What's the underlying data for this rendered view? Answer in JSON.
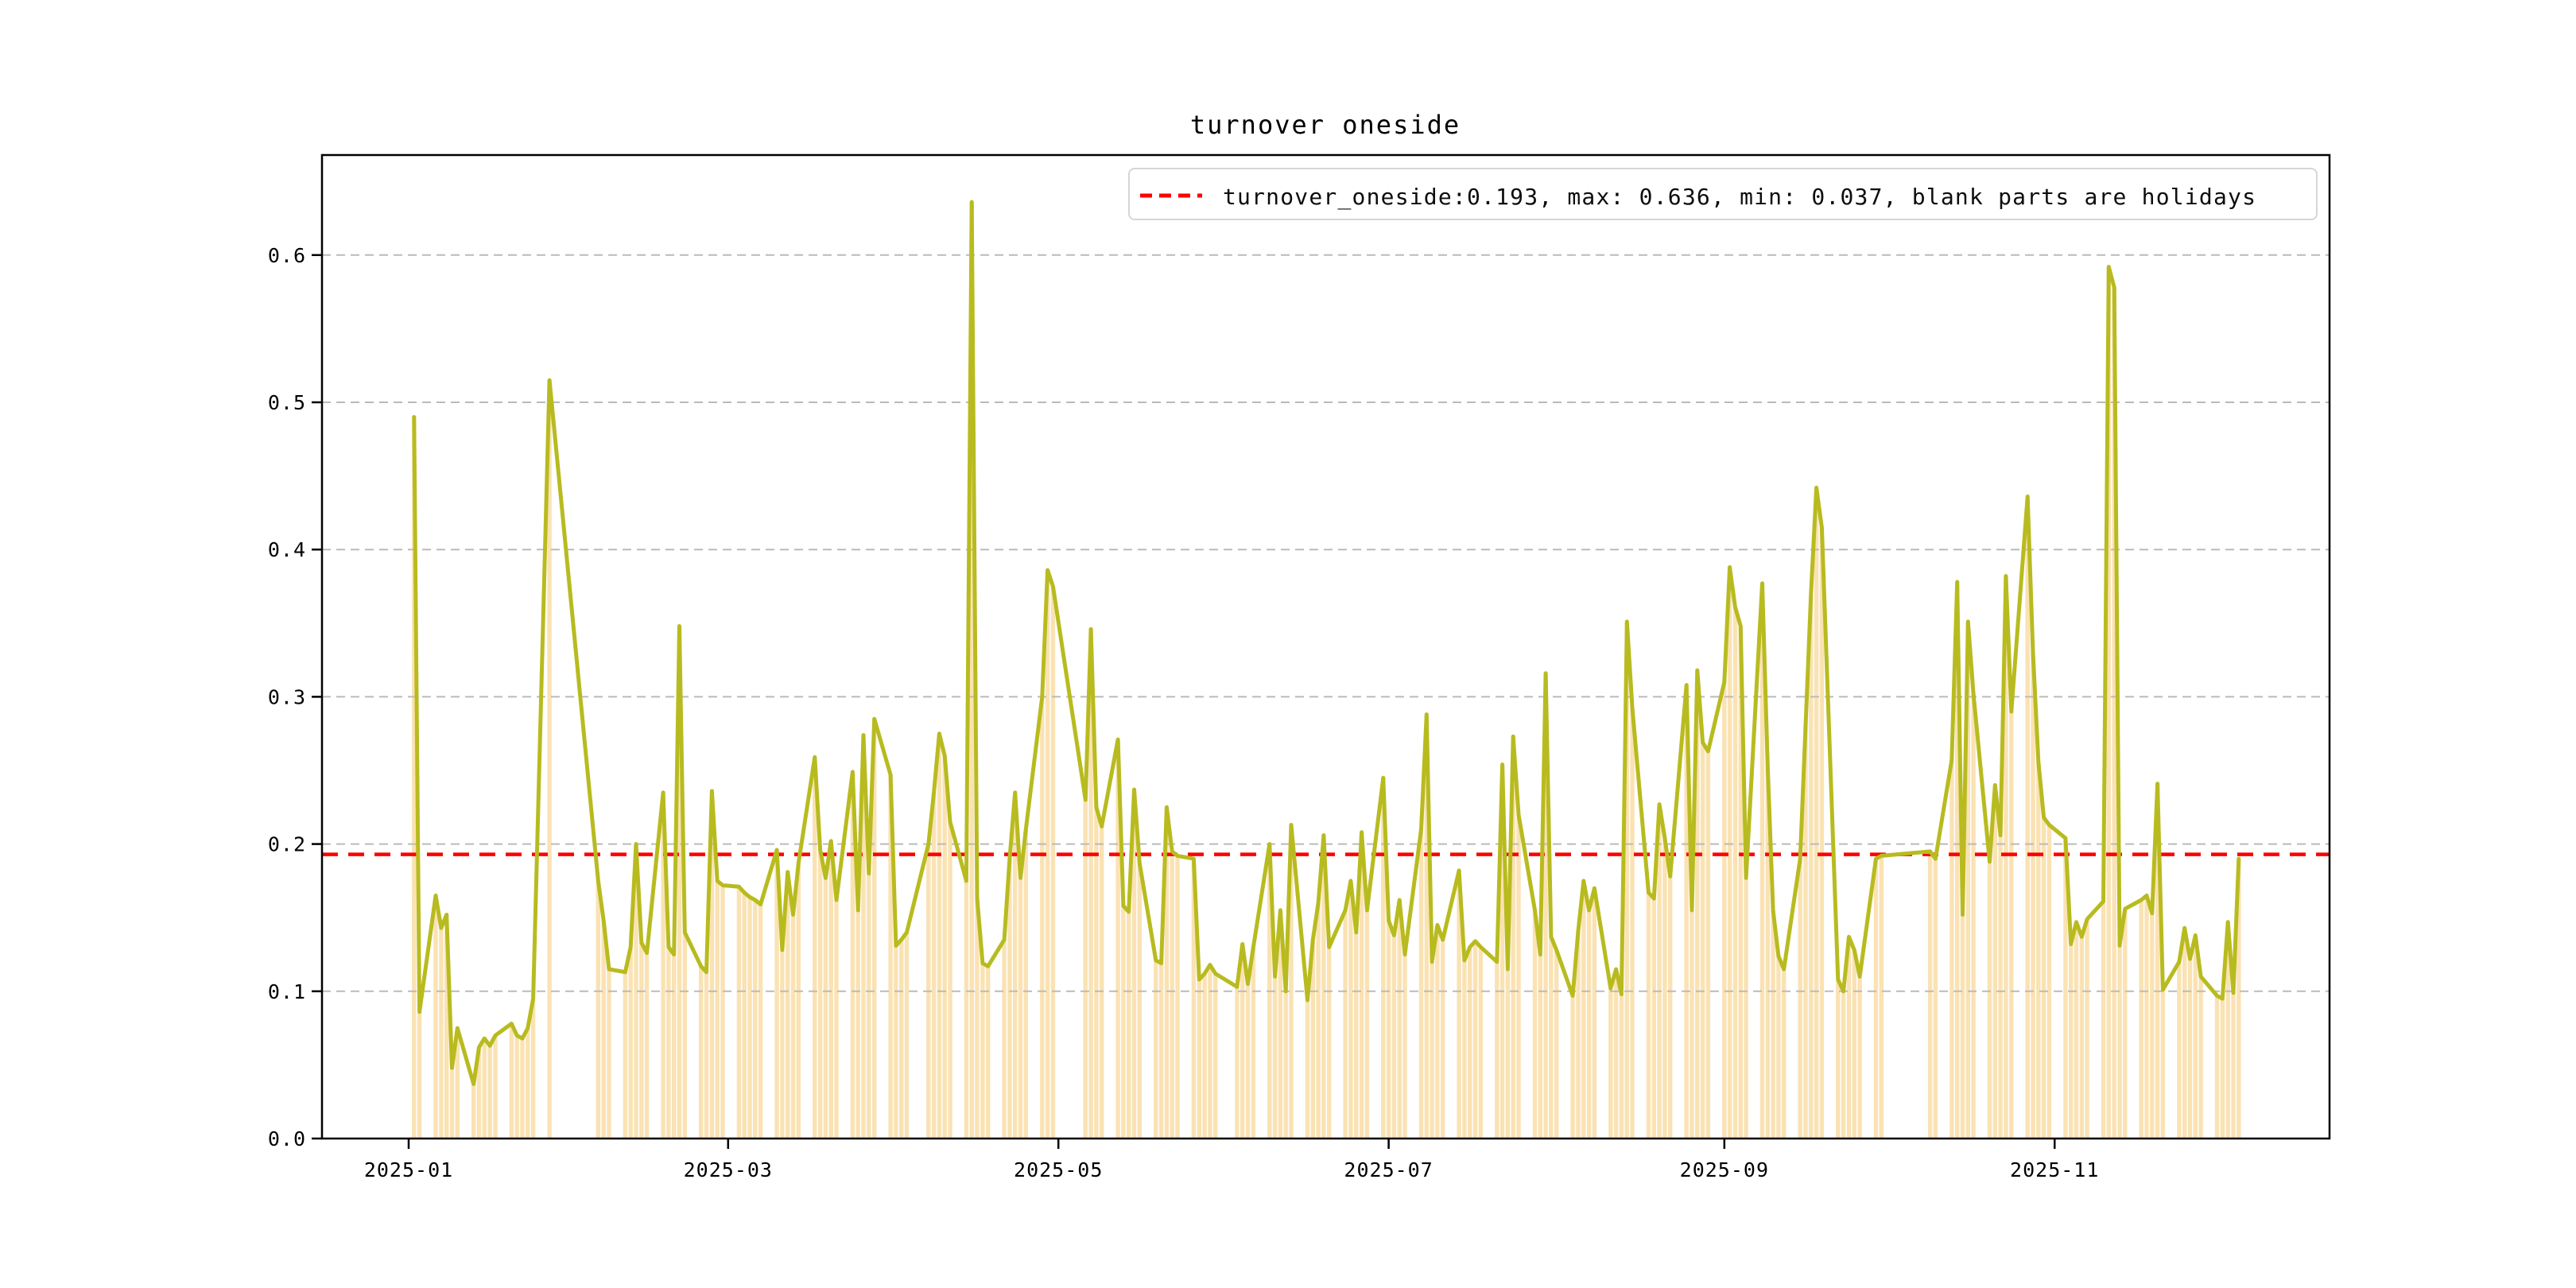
{
  "title": "turnover oneside",
  "legend": {
    "label": "turnover_oneside:0.193, max: 0.636, min: 0.037, blank parts are holidays",
    "sample_style": "red-dashed-line"
  },
  "colors": {
    "line": "#b8bb1f",
    "bar": "#fae2b3",
    "mean_line": "#ff0000",
    "grid": "#bababa",
    "spine": "#000000",
    "text": "#000000",
    "legend_border": "#d6d6d6",
    "background": "#ffffff"
  },
  "chart_data": {
    "type": "line",
    "title": "turnover oneside",
    "series_name": "turnover_oneside",
    "xlabel": "",
    "ylabel": "",
    "year": "2025",
    "stats": {
      "mean": 0.193,
      "max": 0.636,
      "min": 0.037
    },
    "mean_line_value": 0.193,
    "bars_meaning": "trading days (height = daily value); blank parts are holidays",
    "grid": "horizontal dashed",
    "legend_position": "upper right",
    "xticks": [
      "2025-01",
      "2025-03",
      "2025-05",
      "2025-07",
      "2025-09",
      "2025-11"
    ],
    "yticks": [
      0.0,
      0.1,
      0.2,
      0.3,
      0.4,
      0.5,
      0.6
    ],
    "ylim": [
      0,
      0.668
    ],
    "dates": [
      "01-02",
      "01-03",
      "01-06",
      "01-07",
      "01-08",
      "01-09",
      "01-10",
      "01-13",
      "01-14",
      "01-15",
      "01-16",
      "01-17",
      "01-20",
      "01-21",
      "01-22",
      "01-23",
      "01-24",
      "01-27",
      "02-05",
      "02-06",
      "02-07",
      "02-10",
      "02-11",
      "02-12",
      "02-13",
      "02-14",
      "02-17",
      "02-18",
      "02-19",
      "02-20",
      "02-21",
      "02-24",
      "02-25",
      "02-26",
      "02-27",
      "02-28",
      "03-03",
      "03-04",
      "03-05",
      "03-06",
      "03-07",
      "03-10",
      "03-11",
      "03-12",
      "03-13",
      "03-14",
      "03-17",
      "03-18",
      "03-19",
      "03-20",
      "03-21",
      "03-24",
      "03-25",
      "03-26",
      "03-27",
      "03-28",
      "03-31",
      "04-01",
      "04-02",
      "04-03",
      "04-07",
      "04-08",
      "04-09",
      "04-10",
      "04-11",
      "04-14",
      "04-15",
      "04-16",
      "04-17",
      "04-18",
      "04-21",
      "04-22",
      "04-23",
      "04-24",
      "04-25",
      "04-28",
      "04-29",
      "04-30",
      "05-06",
      "05-07",
      "05-08",
      "05-09",
      "05-12",
      "05-13",
      "05-14",
      "05-15",
      "05-16",
      "05-19",
      "05-20",
      "05-21",
      "05-22",
      "05-23",
      "05-26",
      "05-27",
      "05-28",
      "05-29",
      "05-30",
      "06-03",
      "06-04",
      "06-05",
      "06-06",
      "06-09",
      "06-10",
      "06-11",
      "06-12",
      "06-13",
      "06-16",
      "06-17",
      "06-18",
      "06-19",
      "06-20",
      "06-23",
      "06-24",
      "06-25",
      "06-26",
      "06-27",
      "06-30",
      "07-01",
      "07-02",
      "07-03",
      "07-04",
      "07-07",
      "07-08",
      "07-09",
      "07-10",
      "07-11",
      "07-14",
      "07-15",
      "07-16",
      "07-17",
      "07-18",
      "07-21",
      "07-22",
      "07-23",
      "07-24",
      "07-25",
      "07-28",
      "07-29",
      "07-30",
      "07-31",
      "08-01",
      "08-04",
      "08-05",
      "08-06",
      "08-07",
      "08-08",
      "08-11",
      "08-12",
      "08-13",
      "08-14",
      "08-15",
      "08-18",
      "08-19",
      "08-20",
      "08-21",
      "08-22",
      "08-25",
      "08-26",
      "08-27",
      "08-28",
      "08-29",
      "09-01",
      "09-02",
      "09-03",
      "09-04",
      "09-05",
      "09-08",
      "09-09",
      "09-10",
      "09-11",
      "09-12",
      "09-15",
      "09-16",
      "09-17",
      "09-18",
      "09-19",
      "09-22",
      "09-23",
      "09-24",
      "09-25",
      "09-26",
      "09-29",
      "09-30",
      "10-09",
      "10-10",
      "10-13",
      "10-14",
      "10-15",
      "10-16",
      "10-17",
      "10-20",
      "10-21",
      "10-22",
      "10-23",
      "10-24",
      "10-27",
      "10-28",
      "10-29",
      "10-30",
      "10-31",
      "11-03",
      "11-04",
      "11-05",
      "11-06",
      "11-07",
      "11-10",
      "11-11",
      "11-12",
      "11-13",
      "11-14",
      "11-17",
      "11-18",
      "11-19",
      "11-20",
      "11-21",
      "11-24",
      "11-25",
      "11-26",
      "11-27",
      "11-28",
      "12-01",
      "12-02",
      "12-03",
      "12-04",
      "12-05"
    ],
    "values": [
      0.49,
      0.086,
      0.165,
      0.143,
      0.152,
      0.048,
      0.075,
      0.037,
      0.062,
      0.068,
      0.063,
      0.07,
      0.078,
      0.07,
      0.068,
      0.075,
      0.095,
      0.515,
      0.175,
      0.148,
      0.115,
      0.113,
      0.13,
      0.2,
      0.133,
      0.126,
      0.235,
      0.13,
      0.125,
      0.348,
      0.14,
      0.117,
      0.113,
      0.236,
      0.175,
      0.172,
      0.171,
      0.167,
      0.164,
      0.162,
      0.159,
      0.196,
      0.128,
      0.181,
      0.152,
      0.187,
      0.259,
      0.196,
      0.177,
      0.202,
      0.162,
      0.249,
      0.155,
      0.274,
      0.18,
      0.285,
      0.247,
      0.131,
      0.135,
      0.14,
      0.2,
      0.235,
      0.275,
      0.26,
      0.215,
      0.175,
      0.636,
      0.163,
      0.119,
      0.117,
      0.135,
      0.19,
      0.235,
      0.177,
      0.21,
      0.3,
      0.386,
      0.375,
      0.23,
      0.346,
      0.225,
      0.212,
      0.271,
      0.158,
      0.154,
      0.237,
      0.187,
      0.121,
      0.119,
      0.225,
      0.195,
      0.192,
      0.19,
      0.108,
      0.112,
      0.118,
      0.112,
      0.103,
      0.132,
      0.105,
      0.13,
      0.2,
      0.11,
      0.155,
      0.1,
      0.213,
      0.094,
      0.135,
      0.16,
      0.206,
      0.13,
      0.155,
      0.175,
      0.14,
      0.208,
      0.155,
      0.245,
      0.148,
      0.138,
      0.162,
      0.125,
      0.21,
      0.288,
      0.12,
      0.145,
      0.135,
      0.182,
      0.121,
      0.13,
      0.134,
      0.13,
      0.12,
      0.254,
      0.115,
      0.273,
      0.22,
      0.155,
      0.125,
      0.316,
      0.137,
      0.128,
      0.097,
      0.141,
      0.175,
      0.155,
      0.17,
      0.102,
      0.115,
      0.098,
      0.351,
      0.292,
      0.167,
      0.163,
      0.227,
      0.204,
      0.178,
      0.308,
      0.155,
      0.318,
      0.269,
      0.263,
      0.31,
      0.388,
      0.361,
      0.348,
      0.177,
      0.377,
      0.253,
      0.155,
      0.124,
      0.115,
      0.19,
      0.28,
      0.37,
      0.442,
      0.415,
      0.108,
      0.1,
      0.137,
      0.128,
      0.11,
      0.19,
      0.192,
      0.195,
      0.19,
      0.257,
      0.378,
      0.152,
      0.351,
      0.302,
      0.188,
      0.24,
      0.206,
      0.382,
      0.29,
      0.436,
      0.33,
      0.256,
      0.218,
      0.213,
      0.204,
      0.132,
      0.147,
      0.137,
      0.149,
      0.161,
      0.592,
      0.578,
      0.131,
      0.156,
      0.162,
      0.165,
      0.153,
      0.241,
      0.101,
      0.12,
      0.143,
      0.122,
      0.138,
      0.11,
      0.097,
      0.095,
      0.147,
      0.099,
      0.19
    ]
  }
}
